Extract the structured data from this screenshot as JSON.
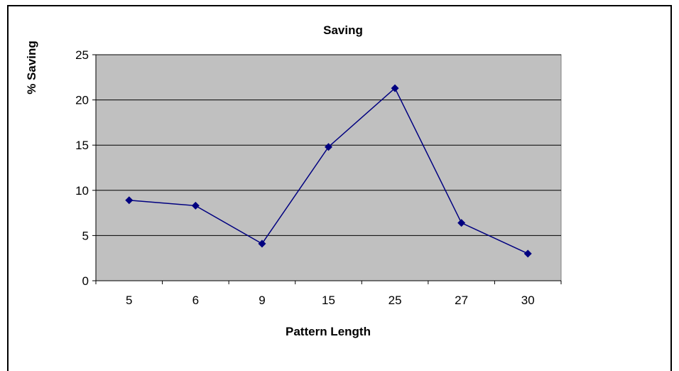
{
  "chart_data": {
    "type": "line",
    "title": "Saving",
    "xlabel": "Pattern Length",
    "ylabel": "% Saving",
    "categories": [
      "5",
      "6",
      "9",
      "15",
      "25",
      "27",
      "30"
    ],
    "series": [
      {
        "values": [
          8.9,
          8.3,
          4.1,
          14.8,
          21.3,
          6.4,
          3.0
        ]
      }
    ],
    "ylim": [
      0,
      25
    ],
    "yticks": [
      "0",
      "5",
      "10",
      "15",
      "20",
      "25"
    ],
    "grid": true,
    "legend": "none",
    "plot_background": "#C0C0C0",
    "series_color": "#000080"
  }
}
